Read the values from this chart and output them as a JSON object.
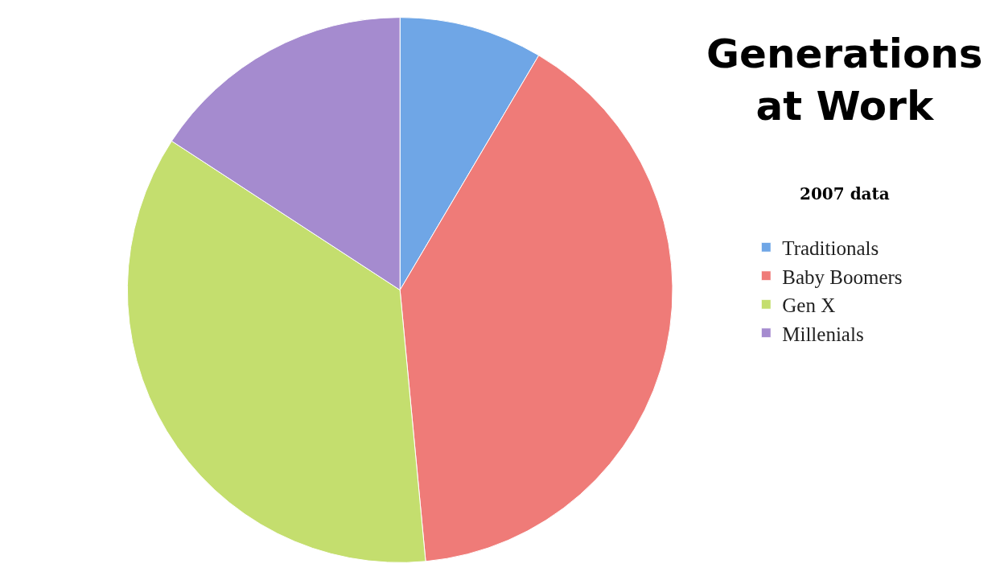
{
  "chart_data": {
    "type": "pie",
    "title": "Generations at Work",
    "subtitle": "2007 data",
    "categories": [
      "Traditionals",
      "Baby Boomers",
      "Gen X",
      "Millenials"
    ],
    "values": [
      8.5,
      40,
      35.7,
      15.8
    ],
    "colors": [
      "#6fa6e6",
      "#ef7b78",
      "#c4de6e",
      "#a58bcf"
    ],
    "legend": "right"
  }
}
